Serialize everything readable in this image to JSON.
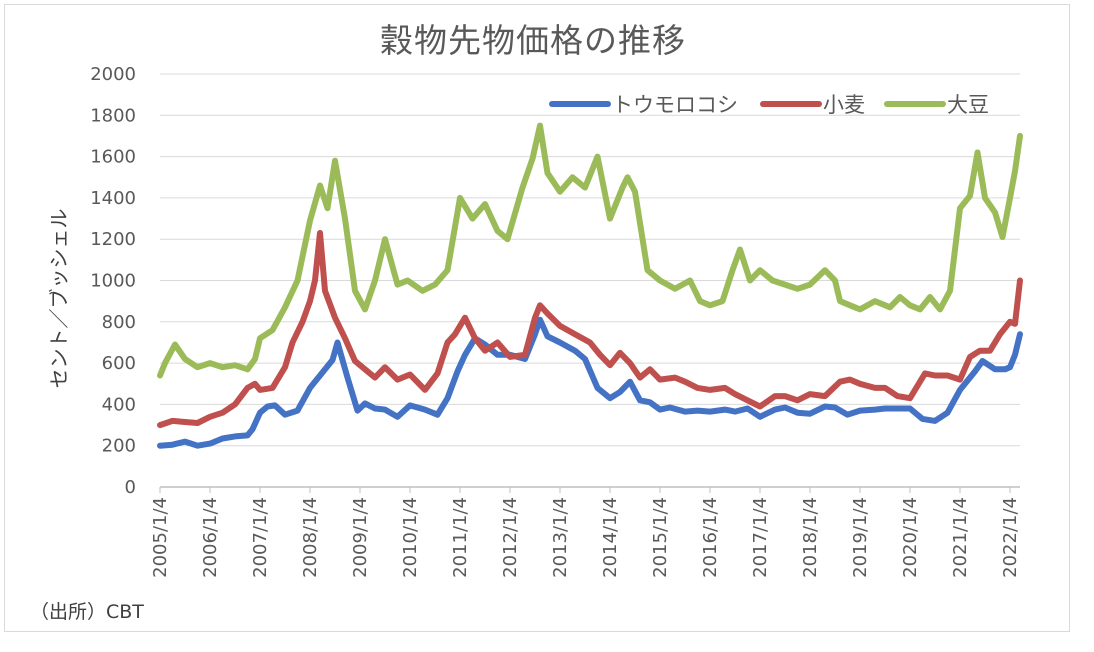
{
  "title": "穀物先物価格の推移",
  "source": "（出所）CBT",
  "chart_data": {
    "type": "line",
    "title": "穀物先物価格の推移",
    "xlabel": "",
    "ylabel": "セント／ブッシェル",
    "ylim": [
      0,
      2000
    ],
    "yticks": [
      0,
      200,
      400,
      600,
      800,
      1000,
      1200,
      1400,
      1600,
      1800,
      2000
    ],
    "xticks": [
      "2005/1/4",
      "2006/1/4",
      "2007/1/4",
      "2008/1/4",
      "2009/1/4",
      "2010/1/4",
      "2011/1/4",
      "2012/1/4",
      "2013/1/4",
      "2014/1/4",
      "2015/1/4",
      "2016/1/4",
      "2017/1/4",
      "2018/1/4",
      "2019/1/4",
      "2020/1/4",
      "2021/1/4",
      "2022/1/4"
    ],
    "xlim": [
      2005.0,
      2022.2
    ],
    "grid": "horizontal",
    "legend": "top-right",
    "series": [
      {
        "name": "トウモロコシ",
        "color": "#4472c4",
        "x": [
          2005.0,
          2005.25,
          2005.5,
          2005.75,
          2006.0,
          2006.25,
          2006.5,
          2006.75,
          2006.85,
          2007.0,
          2007.15,
          2007.3,
          2007.5,
          2007.75,
          2008.0,
          2008.2,
          2008.45,
          2008.55,
          2008.75,
          2008.95,
          2009.1,
          2009.3,
          2009.5,
          2009.75,
          2010.0,
          2010.3,
          2010.55,
          2010.75,
          2010.95,
          2011.1,
          2011.3,
          2011.5,
          2011.75,
          2012.0,
          2012.3,
          2012.5,
          2012.6,
          2012.75,
          2013.0,
          2013.3,
          2013.5,
          2013.75,
          2014.0,
          2014.2,
          2014.4,
          2014.6,
          2014.8,
          2015.0,
          2015.2,
          2015.5,
          2015.75,
          2016.0,
          2016.3,
          2016.5,
          2016.75,
          2017.0,
          2017.3,
          2017.5,
          2017.75,
          2018.0,
          2018.3,
          2018.5,
          2018.75,
          2019.0,
          2019.3,
          2019.5,
          2019.75,
          2020.0,
          2020.25,
          2020.5,
          2020.75,
          2021.0,
          2021.3,
          2021.45,
          2021.7,
          2021.9,
          2022.0,
          2022.1,
          2022.2
        ],
        "values": [
          200,
          205,
          220,
          200,
          210,
          235,
          245,
          250,
          280,
          360,
          390,
          395,
          350,
          370,
          480,
          540,
          615,
          700,
          530,
          370,
          405,
          380,
          375,
          340,
          395,
          375,
          350,
          430,
          560,
          640,
          720,
          690,
          640,
          640,
          620,
          740,
          810,
          730,
          700,
          660,
          620,
          480,
          430,
          460,
          510,
          420,
          410,
          375,
          385,
          365,
          370,
          365,
          375,
          365,
          380,
          340,
          375,
          385,
          360,
          355,
          390,
          385,
          350,
          370,
          375,
          380,
          380,
          380,
          330,
          320,
          360,
          470,
          560,
          610,
          570,
          570,
          580,
          640,
          740
        ]
      },
      {
        "name": "小麦",
        "color": "#c0504d",
        "x": [
          2005.0,
          2005.25,
          2005.5,
          2005.75,
          2006.0,
          2006.25,
          2006.5,
          2006.75,
          2006.9,
          2007.0,
          2007.25,
          2007.5,
          2007.65,
          2007.85,
          2008.0,
          2008.1,
          2008.2,
          2008.3,
          2008.5,
          2008.7,
          2008.9,
          2009.1,
          2009.3,
          2009.5,
          2009.75,
          2010.0,
          2010.3,
          2010.55,
          2010.75,
          2010.9,
          2011.1,
          2011.3,
          2011.5,
          2011.75,
          2012.0,
          2012.3,
          2012.5,
          2012.6,
          2012.75,
          2013.0,
          2013.3,
          2013.6,
          2013.8,
          2014.0,
          2014.2,
          2014.4,
          2014.6,
          2014.8,
          2015.0,
          2015.3,
          2015.5,
          2015.75,
          2016.0,
          2016.3,
          2016.5,
          2016.75,
          2017.0,
          2017.3,
          2017.5,
          2017.75,
          2018.0,
          2018.3,
          2018.6,
          2018.8,
          2019.0,
          2019.3,
          2019.5,
          2019.75,
          2020.0,
          2020.3,
          2020.5,
          2020.75,
          2021.0,
          2021.2,
          2021.4,
          2021.6,
          2021.8,
          2022.0,
          2022.1,
          2022.2
        ],
        "values": [
          300,
          320,
          315,
          310,
          340,
          360,
          400,
          480,
          500,
          470,
          480,
          580,
          700,
          800,
          900,
          1000,
          1230,
          950,
          820,
          720,
          610,
          570,
          530,
          580,
          520,
          545,
          470,
          550,
          700,
          740,
          820,
          720,
          660,
          700,
          630,
          640,
          820,
          880,
          840,
          780,
          740,
          700,
          640,
          590,
          650,
          600,
          530,
          570,
          520,
          530,
          510,
          480,
          470,
          480,
          450,
          420,
          390,
          440,
          440,
          420,
          450,
          440,
          510,
          520,
          500,
          480,
          480,
          440,
          430,
          550,
          540,
          540,
          520,
          630,
          660,
          660,
          740,
          800,
          790,
          1000
        ]
      },
      {
        "name": "大豆",
        "color": "#9bbb59",
        "x": [
          2005.0,
          2005.1,
          2005.3,
          2005.5,
          2005.75,
          2006.0,
          2006.25,
          2006.5,
          2006.75,
          2006.9,
          2007.0,
          2007.25,
          2007.5,
          2007.75,
          2008.0,
          2008.2,
          2008.35,
          2008.5,
          2008.7,
          2008.9,
          2009.1,
          2009.3,
          2009.5,
          2009.75,
          2009.95,
          2010.25,
          2010.5,
          2010.75,
          2011.0,
          2011.25,
          2011.5,
          2011.75,
          2011.95,
          2012.25,
          2012.45,
          2012.6,
          2012.75,
          2013.0,
          2013.25,
          2013.5,
          2013.75,
          2014.0,
          2014.25,
          2014.35,
          2014.5,
          2014.75,
          2015.0,
          2015.3,
          2015.6,
          2015.8,
          2016.0,
          2016.25,
          2016.45,
          2016.6,
          2016.8,
          2017.0,
          2017.25,
          2017.5,
          2017.75,
          2018.0,
          2018.3,
          2018.5,
          2018.6,
          2018.8,
          2019.0,
          2019.3,
          2019.6,
          2019.8,
          2020.0,
          2020.2,
          2020.4,
          2020.6,
          2020.8,
          2021.0,
          2021.2,
          2021.35,
          2021.5,
          2021.7,
          2021.85,
          2022.0,
          2022.1,
          2022.2
        ],
        "values": [
          540,
          600,
          690,
          620,
          580,
          600,
          580,
          590,
          570,
          620,
          720,
          760,
          870,
          1000,
          1290,
          1460,
          1350,
          1580,
          1300,
          950,
          860,
          1000,
          1200,
          980,
          1000,
          950,
          980,
          1050,
          1400,
          1300,
          1370,
          1240,
          1200,
          1450,
          1590,
          1750,
          1520,
          1430,
          1500,
          1450,
          1600,
          1300,
          1450,
          1500,
          1430,
          1050,
          1000,
          960,
          1000,
          900,
          880,
          900,
          1050,
          1150,
          1000,
          1050,
          1000,
          980,
          960,
          980,
          1050,
          1000,
          900,
          880,
          860,
          900,
          870,
          920,
          880,
          860,
          920,
          860,
          950,
          1350,
          1410,
          1620,
          1400,
          1330,
          1210,
          1400,
          1530,
          1700
        ]
      }
    ]
  }
}
